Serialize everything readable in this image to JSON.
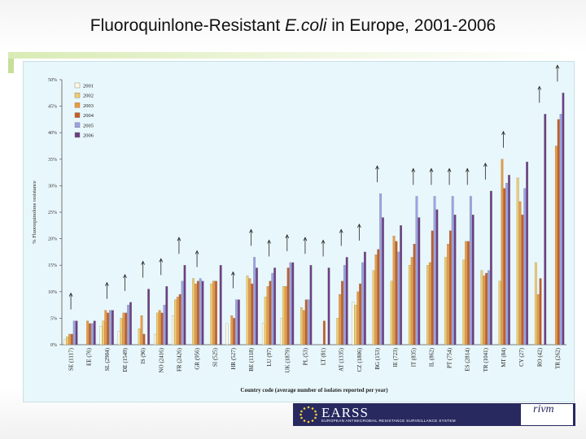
{
  "title": {
    "before": "Fluoroquinlone-Resistant ",
    "italic": "E.coli",
    "after": " in Europe, 2001-2006"
  },
  "footer": {
    "earss": "EARSS",
    "earss_sub": "EUROPEAN ANTIMICROBIAL RESISTANCE SURVEILLANCE SYSTEM",
    "rivm": "rivm"
  },
  "colors": {
    "2001": "#fffbe0",
    "2002": "#f2cc6a",
    "2003": "#f09a36",
    "2004": "#c75c23",
    "2005": "#9aa2e6",
    "2006": "#6b3f84",
    "panel": "#e8f7fb",
    "arrow": "#222222"
  },
  "chart_data": {
    "type": "bar",
    "ylabel": "% Fluoroquinolone resistance",
    "xlabel": "Country code (average number of isolates reported per year)",
    "ylim": [
      0,
      50
    ],
    "yticks": [
      "0%",
      "5%",
      "10%",
      "15%",
      "20%",
      "25%",
      "30%",
      "35%",
      "40%",
      "45%",
      "50%"
    ],
    "grid": false,
    "legend_position": "top-left",
    "categories": [
      "SE (1117)",
      "EE (76)",
      "SL (2904)",
      "DE (1549)",
      "IS (96)",
      "NO (2416)",
      "FR (2426)",
      "GR (956)",
      "SI (525)",
      "HR (527)",
      "BE (1118)",
      "LU (97)",
      "UK (1879)",
      "PL (53)",
      "LT (81)",
      "AT (1335)",
      "CZ (1806)",
      "BG (153)",
      "IE (723)",
      "IT (835)",
      "IL (862)",
      "PT (754)",
      "ES (2814)",
      "TR (1041)",
      "MT (84)",
      "CY (27)",
      "RO (42)",
      "TR (262)"
    ],
    "series": [
      {
        "name": "2001",
        "values": [
          1,
          null,
          3.5,
          2.5,
          null,
          2,
          5.5,
          null,
          null,
          4,
          null,
          4,
          5,
          null,
          null,
          null,
          8,
          null,
          null,
          null,
          null,
          null,
          null,
          null,
          null,
          null,
          null,
          null
        ]
      },
      {
        "name": "2002",
        "values": [
          1.5,
          null,
          4.5,
          5,
          3,
          6,
          8.5,
          12.5,
          11.5,
          null,
          13,
          9,
          11,
          7,
          null,
          5,
          7.5,
          14,
          12,
          15,
          15,
          16.5,
          16,
          14,
          12,
          31.5,
          15.5,
          null
        ]
      },
      {
        "name": "2003",
        "values": [
          2,
          4.5,
          6.5,
          6,
          5.5,
          6.5,
          9,
          11.5,
          12,
          5.5,
          12.5,
          11,
          11,
          6.5,
          null,
          9.5,
          10,
          17,
          20.5,
          16.5,
          15.5,
          19,
          19.5,
          13,
          35,
          27,
          9.5,
          37.5
        ]
      },
      {
        "name": "2004",
        "values": [
          2,
          4,
          6,
          6,
          2,
          6,
          9.5,
          12,
          12,
          5,
          11.5,
          12,
          14.5,
          8.5,
          4.5,
          12,
          11.5,
          18,
          19.5,
          19,
          21.5,
          21.5,
          19.5,
          13.5,
          29.5,
          24.5,
          12.5,
          42.5
        ]
      },
      {
        "name": "2005",
        "values": [
          4.5,
          4,
          6.5,
          7.5,
          null,
          7.5,
          12,
          12.5,
          null,
          8.5,
          16.5,
          13.5,
          15.5,
          8.5,
          null,
          15,
          15.5,
          28.5,
          17.5,
          28,
          28,
          28,
          28,
          14,
          30.5,
          29.5,
          null,
          43.5
        ]
      },
      {
        "name": "2006",
        "values": [
          4.5,
          4.5,
          6.5,
          8,
          10.5,
          11,
          15,
          12,
          15,
          8.5,
          14.5,
          14.5,
          15.5,
          15,
          14.5,
          16.5,
          17.5,
          24,
          22.5,
          24,
          25.5,
          24.5,
          24.5,
          29,
          32,
          34.5,
          43.5,
          47.5
        ]
      }
    ],
    "arrows": {
      "note": "upward trend arrows shown above bars",
      "categories": [
        0,
        2,
        3,
        4,
        5,
        6,
        7,
        9,
        10,
        11,
        12,
        13,
        14,
        15,
        16,
        17,
        19,
        20,
        21,
        22,
        23,
        24,
        26,
        27
      ]
    }
  }
}
